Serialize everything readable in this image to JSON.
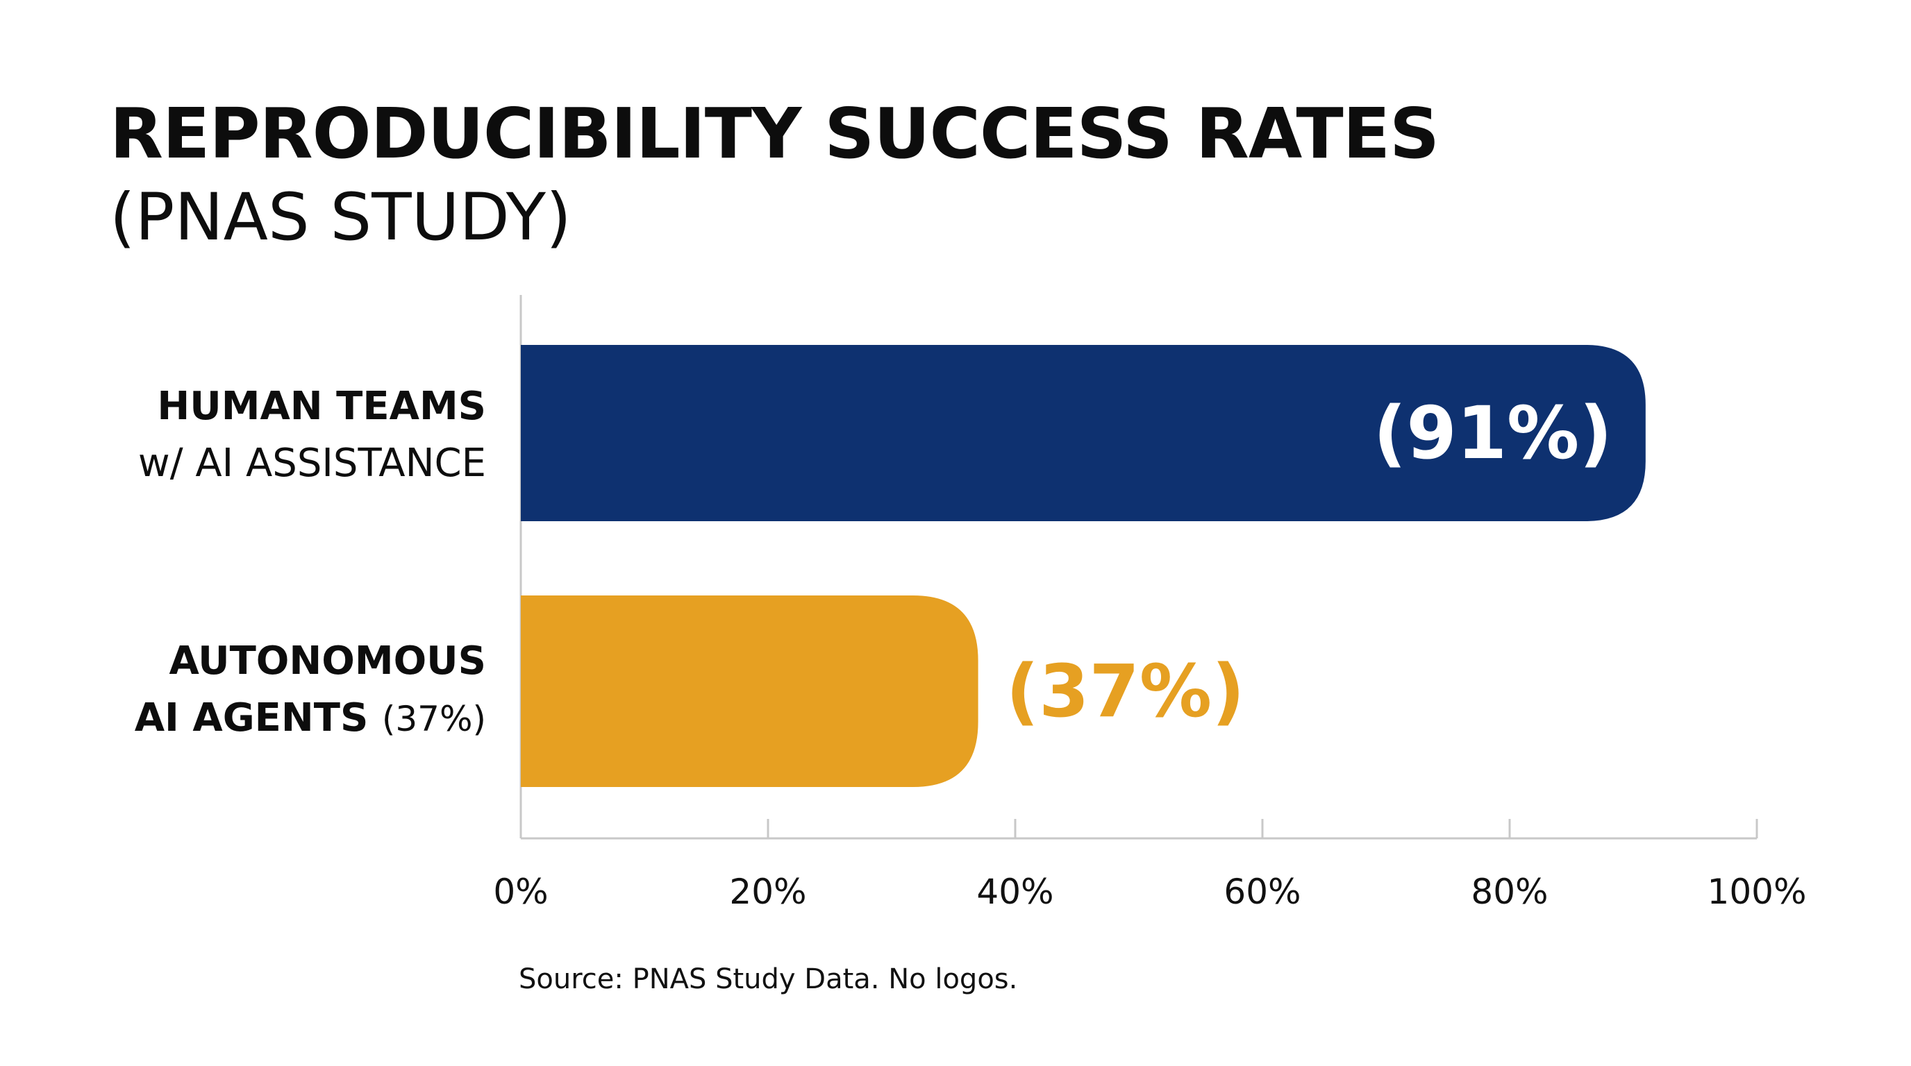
{
  "title": "REPRODUCIBILITY SUCCESS RATES",
  "subtitle": "(PNAS STUDY)",
  "source": "Source: PNAS Study Data. No logos.",
  "colors": {
    "bar_1": "#0e3170",
    "bar_2": "#e6a022",
    "axis": "#c8c8c8",
    "text": "#0d0d0d"
  },
  "categories": [
    {
      "line1": "HUMAN TEAMS",
      "line2": "w/ AI ASSISTANCE"
    },
    {
      "line1": "AUTONOMOUS",
      "line2_bold": "AI AGENTS",
      "line2_extra": "(37%)"
    }
  ],
  "chart_data": {
    "type": "bar",
    "orientation": "horizontal",
    "title": "REPRODUCIBILITY SUCCESS RATES",
    "subtitle": "(PNAS STUDY)",
    "categories": [
      "HUMAN TEAMS w/ AI ASSISTANCE",
      "AUTONOMOUS AI AGENTS (37%)"
    ],
    "values": [
      91,
      37
    ],
    "value_labels": [
      "(91%)",
      "(37%)"
    ],
    "xlim": [
      0,
      100
    ],
    "xticks": [
      "0%",
      "20%",
      "40%",
      "60%",
      "80%",
      "100%"
    ],
    "grid": false,
    "legend": "none"
  }
}
